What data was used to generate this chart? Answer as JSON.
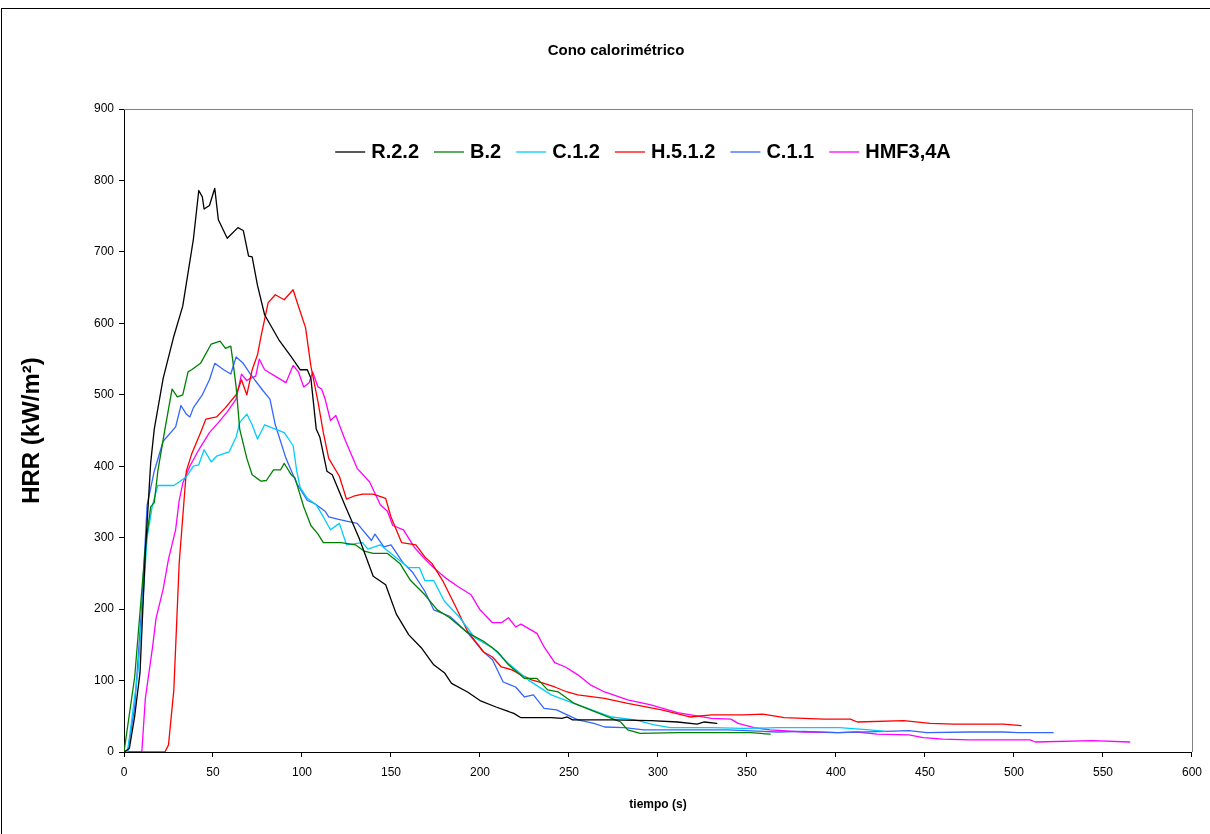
{
  "chart_data": {
    "type": "line",
    "title": "Cono calorimétrico",
    "xlabel": "tiempo (s)",
    "ylabel": "HRR (kW/m²)",
    "xlim": [
      0,
      600
    ],
    "xticks": [
      0,
      50,
      100,
      150,
      200,
      250,
      300,
      350,
      400,
      450,
      500,
      550,
      600
    ],
    "ylim": [
      0,
      900
    ],
    "yticks": [
      0,
      100,
      200,
      300,
      400,
      500,
      600,
      700,
      800,
      900
    ],
    "legend": "top",
    "series": [
      {
        "name": "R.2.2",
        "color": "#000000",
        "x": [
          0,
          3,
          6,
          9,
          12,
          15,
          17,
          22,
          28,
          33,
          39,
          42,
          44,
          45,
          48,
          51,
          53,
          58,
          64,
          67,
          70,
          72,
          75,
          79,
          87,
          94,
          99,
          103,
          105,
          108,
          110,
          114,
          117,
          124,
          132,
          140,
          147,
          153,
          160,
          167,
          174,
          180,
          184,
          193,
          200,
          209,
          219,
          223,
          240,
          246,
          249,
          252,
          274,
          296,
          311,
          322,
          326,
          333
        ],
        "values": [
          0,
          5,
          50,
          111,
          280,
          405,
          452,
          523,
          582,
          624,
          718,
          786,
          777,
          760,
          765,
          789,
          745,
          719,
          734,
          730,
          694,
          693,
          653,
          612,
          577,
          553,
          535,
          535,
          523,
          452,
          441,
          393,
          388,
          346,
          300,
          246,
          234,
          193,
          164,
          146,
          122,
          111,
          96,
          84,
          72,
          63,
          54,
          48,
          48,
          47,
          49,
          45,
          45,
          44,
          42,
          39,
          42,
          40
        ]
      },
      {
        "name": "B.2",
        "color": "#008000",
        "x": [
          0,
          6,
          12,
          15,
          17,
          19,
          23,
          27,
          30,
          33,
          36,
          38,
          43,
          49,
          54,
          57,
          60,
          61,
          63,
          65,
          69,
          72,
          77,
          80,
          84,
          88,
          90,
          91,
          94,
          96,
          101,
          105,
          109,
          112,
          122,
          130,
          135,
          140,
          148,
          155,
          161,
          169,
          176,
          183,
          193,
          202,
          210,
          216,
          225,
          232,
          238,
          244,
          253,
          262,
          274,
          279,
          283,
          290,
          311,
          330,
          352,
          363
        ],
        "values": [
          0,
          105,
          287,
          343,
          349,
          393,
          452,
          508,
          497,
          500,
          532,
          535,
          544,
          571,
          575,
          565,
          568,
          550,
          511,
          452,
          411,
          388,
          379,
          380,
          395,
          395,
          404,
          400,
          388,
          384,
          343,
          317,
          305,
          293,
          293,
          290,
          281,
          278,
          278,
          264,
          240,
          220,
          199,
          188,
          167,
          155,
          140,
          122,
          103,
          103,
          87,
          84,
          68,
          59,
          47,
          42,
          31,
          26,
          27,
          27,
          27,
          25
        ]
      },
      {
        "name": "C.1.2",
        "color": "#00ccff",
        "x": [
          0,
          2,
          8,
          13,
          16,
          19,
          28,
          35,
          39,
          42,
          45,
          49,
          52,
          59,
          63,
          65,
          69,
          72,
          75,
          79,
          85,
          90,
          95,
          97,
          99,
          103,
          108,
          112,
          116,
          121,
          125,
          134,
          137,
          144,
          150,
          160,
          166,
          169,
          174,
          180,
          188,
          197,
          207,
          216,
          227,
          240,
          255,
          274,
          287,
          298,
          307,
          330,
          348,
          367,
          402,
          419,
          428
        ],
        "values": [
          0,
          0,
          116,
          300,
          346,
          373,
          373,
          385,
          400,
          402,
          423,
          406,
          414,
          420,
          441,
          461,
          473,
          458,
          438,
          458,
          452,
          447,
          429,
          394,
          370,
          355,
          346,
          329,
          311,
          320,
          290,
          293,
          284,
          290,
          278,
          258,
          258,
          240,
          240,
          211,
          190,
          160,
          146,
          124,
          101,
          80,
          66,
          49,
          45,
          38,
          34,
          34,
          33,
          34,
          34,
          31,
          29
        ]
      },
      {
        "name": "H.5.1.2",
        "color": "#ff0000",
        "x": [
          0,
          23,
          25,
          28,
          31,
          35,
          38,
          43,
          46,
          52,
          57,
          63,
          66,
          69,
          72,
          75,
          77,
          81,
          85,
          90,
          95,
          98,
          102,
          105,
          109,
          112,
          115,
          121,
          125,
          129,
          134,
          140,
          147,
          150,
          156,
          164,
          169,
          173,
          179,
          186,
          193,
          202,
          207,
          212,
          218,
          223,
          229,
          236,
          242,
          249,
          255,
          270,
          283,
          302,
          318,
          330,
          348,
          359,
          371,
          393,
          408,
          412,
          438,
          453,
          466,
          494,
          504
        ],
        "values": [
          0,
          0,
          10,
          87,
          264,
          393,
          417,
          447,
          466,
          469,
          482,
          500,
          521,
          500,
          535,
          556,
          582,
          629,
          640,
          633,
          647,
          624,
          594,
          540,
          490,
          447,
          411,
          386,
          354,
          358,
          361,
          361,
          355,
          329,
          293,
          290,
          273,
          264,
          240,
          205,
          169,
          140,
          133,
          119,
          115,
          108,
          101,
          96,
          91,
          84,
          80,
          75,
          68,
          59,
          49,
          52,
          52,
          53,
          48,
          46,
          46,
          42,
          44,
          40,
          39,
          39,
          37
        ]
      },
      {
        "name": "C.1.1",
        "color": "#3366ff",
        "x": [
          0,
          2,
          6,
          10,
          13,
          17,
          22,
          29,
          32,
          35,
          37,
          39,
          44,
          48,
          51,
          56,
          60,
          63,
          67,
          71,
          78,
          82,
          85,
          91,
          97,
          103,
          106,
          108,
          113,
          115,
          120,
          125,
          131,
          139,
          141,
          146,
          150,
          157,
          162,
          169,
          174,
          183,
          193,
          202,
          207,
          213,
          220,
          225,
          230,
          236,
          243,
          249,
          255,
          264,
          270,
          281,
          292,
          311,
          339,
          367,
          382,
          401,
          428,
          441,
          451,
          475,
          494,
          503,
          522
        ],
        "values": [
          0,
          0,
          63,
          205,
          346,
          393,
          435,
          455,
          485,
          473,
          469,
          482,
          500,
          521,
          544,
          535,
          529,
          553,
          544,
          529,
          506,
          494,
          458,
          411,
          376,
          352,
          349,
          346,
          337,
          329,
          326,
          323,
          320,
          296,
          305,
          287,
          290,
          264,
          252,
          225,
          199,
          190,
          167,
          140,
          129,
          98,
          91,
          77,
          80,
          61,
          59,
          52,
          45,
          40,
          35,
          34,
          31,
          31,
          31,
          28,
          29,
          27,
          29,
          30,
          27,
          28,
          28,
          27,
          27
        ]
      },
      {
        "name": "HMF3,4A",
        "color": "#ff00ff",
        "x": [
          0,
          10,
          12,
          16,
          18,
          22,
          25,
          29,
          31,
          33,
          37,
          42,
          48,
          53,
          58,
          63,
          66,
          69,
          71,
          74,
          76,
          79,
          87,
          91,
          95,
          98,
          101,
          104,
          106,
          109,
          111,
          113,
          116,
          119,
          124,
          131,
          138,
          144,
          148,
          151,
          157,
          163,
          169,
          174,
          181,
          188,
          195,
          200,
          207,
          212,
          216,
          220,
          223,
          232,
          236,
          242,
          248,
          255,
          262,
          270,
          283,
          296,
          311,
          330,
          341,
          345,
          354,
          363,
          382,
          401,
          412,
          423,
          441,
          449,
          460,
          475,
          509,
          512,
          544,
          565
        ],
        "values": [
          0,
          0,
          75,
          146,
          187,
          228,
          270,
          311,
          352,
          376,
          400,
          423,
          447,
          461,
          476,
          494,
          529,
          520,
          523,
          526,
          550,
          535,
          523,
          517,
          541,
          532,
          511,
          517,
          532,
          511,
          508,
          494,
          464,
          471,
          438,
          397,
          378,
          346,
          337,
          317,
          311,
          287,
          270,
          258,
          243,
          231,
          220,
          199,
          181,
          181,
          188,
          175,
          179,
          166,
          147,
          125,
          119,
          108,
          94,
          84,
          73,
          66,
          55,
          47,
          46,
          40,
          34,
          31,
          28,
          27,
          28,
          25,
          24,
          20,
          18,
          17,
          17,
          14,
          16,
          14
        ]
      }
    ]
  }
}
